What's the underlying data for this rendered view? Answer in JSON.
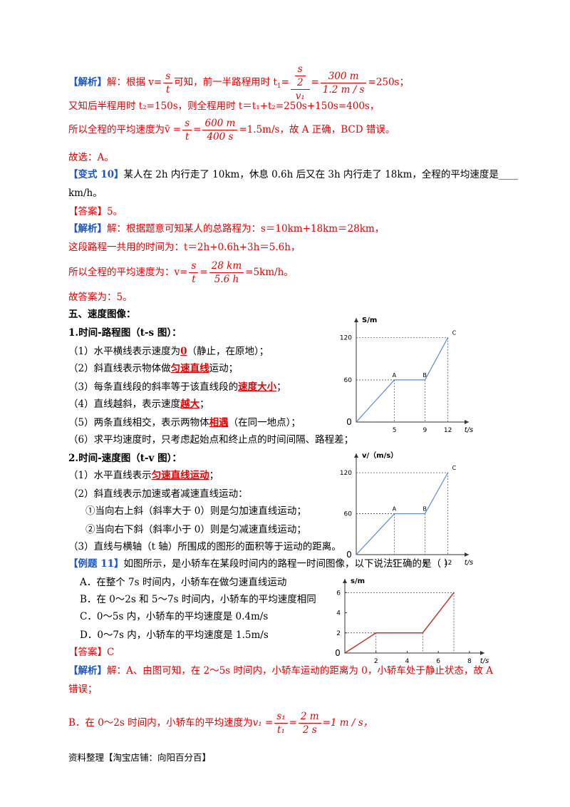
{
  "doc": {
    "l1_a": "【解析】",
    "l1_b": "解：根据 v=",
    "l1_c": "可知，前一半路程用时 t",
    "l1_sub": "1",
    "l1_d": "=",
    "l1_e": "=",
    "l1_f": "=250s；",
    "frac_s": "s",
    "frac_t": "t",
    "frac_half_top": "s",
    "frac_half_mid": "2",
    "frac_half_bot": "v₁",
    "frac_300": "300 m",
    "frac_12": "1.2 m / s",
    "l2": "又知后半程用时 t₂=150s，则全程用时 t＝t₁+t₂=250s+150s=400s，",
    "l3_a": "所以全程的平均速度为v̄ =",
    "l3_eq": "=",
    "frac_600": "600 m",
    "frac_400": "400 s",
    "l3_b": "=1.5m/s，故 A 正确，BCD 错误。",
    "l4": "故选：A。",
    "l5_a": "【变式 10】",
    "l5_b": "某人在 2h 内行走了 10km，休息 0.6h 后又在 3h 内行走了 18km，全程的平均速度是____",
    "l6": "km/h。",
    "l7": "【答案】5。",
    "l8_a": "【解析】",
    "l8_b": "解：根据题意可知某人的总路程为：s＝10km+18km＝28km，",
    "l9": "这段路程一共用的时间为：t＝2h+0.6h+3h＝5.6h，",
    "l10_a": "所以全程的平均速度为：v=",
    "l10_eq": "=",
    "frac_28": "28 km",
    "frac_56": "5.6 h",
    "l10_b": "=5km/h。",
    "l11": "故答案为：5。",
    "h5": "五、速度图像：",
    "h51": "1.时间-路程图（t-s 图）：",
    "p1_a": "（1）水平横线表示速度为",
    "p1_u": "0",
    "p1_b": "（静止，在原地）；",
    "p2_a": "（2）斜直线表示物体做",
    "p2_u": "匀速直线",
    "p2_b": "运动；",
    "p3_a": "（3）每条直线段的斜率等于该直线段的",
    "p3_u": "速度大小",
    "p3_b": "；",
    "p4_a": "（4）直线越斜，表示速度",
    "p4_u": "越大",
    "p4_b": "；",
    "p5_a": "（5）两条直线相交，表示两物体",
    "p5_u": "相遇",
    "p5_b": "（在同一地点）；",
    "p6": "（6）求平均速度时，只考虑起始点和终止点的时间间隔、路程差；",
    "h52": "2.时间-速度图（t-v 图）：",
    "q1_a": "（1）水平直线表示",
    "q1_u": "匀速直线运动",
    "q1_b": "；",
    "q2": "（2）斜直线表示加速或者减速直线运动：",
    "q2a": "①当向右上斜（斜率大于 0）则是匀加速直线运动；",
    "q2b": "②当向右下斜（斜率小于 0）则是匀减速直线运动；",
    "q3": "（3）直线与横轴（t 轴）所围成的图形的面积等于运动的距离。",
    "e11_a": "【例题 11】",
    "e11_b": "如图所示，是小轿车在某段时间内的路程一时间图像，以下说法正确的是（    ）",
    "optA": "A．在整个 7s 时间内，小轿车在做匀速直线运动",
    "optB": "B．在 0～2s 和 5～7s 时间内，小轿车的平均速度相同",
    "optC": "C．0～5s 内，小轿车的平均速度是 0.4m/s",
    "optD": "D．0～7s 内，小轿车的平均速度是 1.5m/s",
    "ans": "【答案】C",
    "an_a": "【解析】",
    "an_b": "解：A、由图可知，在 2～5s 时间内，小轿车运动的距离为 0，小轿车处于静止状态，故 A",
    "an_c": "错误；",
    "lb_a": "B．在 0～2s 时间内，小轿车的平均速度为",
    "lb_v": "v₁ =",
    "frac_s1": "s₁",
    "frac_t1": "t₁",
    "lb_eq": "=",
    "frac_2m": "2 m",
    "frac_2s": "2 s",
    "lb_b": "=1 m / s，",
    "footer": "资料整理【淘宝店铺：向阳百分百】"
  },
  "chart_data": [
    {
      "type": "line",
      "ylabel": "S/m",
      "xlabel": "t/s",
      "x_ticks": [
        "5",
        "9",
        "12"
      ],
      "y_ticks": [
        "60",
        "120"
      ],
      "origin_label": "0",
      "points": [
        {
          "x": 0,
          "y": 0
        },
        {
          "x": 5,
          "y": 60,
          "label": "A"
        },
        {
          "x": 9,
          "y": 60,
          "label": "B"
        },
        {
          "x": 12,
          "y": 120,
          "label": "C"
        }
      ],
      "xlim": [
        0,
        14
      ],
      "ylim": [
        0,
        140
      ]
    },
    {
      "type": "line",
      "ylabel": "v/（m/s）",
      "xlabel": "t/s",
      "x_ticks": [
        "5",
        "9",
        "12"
      ],
      "y_ticks": [
        "60",
        "120"
      ],
      "origin_label": "0",
      "points": [
        {
          "x": 0,
          "y": 0
        },
        {
          "x": 5,
          "y": 60,
          "label": "A"
        },
        {
          "x": 9,
          "y": 60,
          "label": "B"
        },
        {
          "x": 12,
          "y": 120,
          "label": "C"
        }
      ],
      "xlim": [
        0,
        14
      ],
      "ylim": [
        0,
        140
      ]
    },
    {
      "type": "line",
      "ylabel": "s/m",
      "xlabel": "t/s",
      "x_ticks": [
        "2",
        "4",
        "6",
        "8"
      ],
      "y_ticks": [
        "2",
        "4",
        "6"
      ],
      "origin_label": "0",
      "points": [
        {
          "x": 0,
          "y": 0
        },
        {
          "x": 2,
          "y": 2
        },
        {
          "x": 5,
          "y": 2
        },
        {
          "x": 7,
          "y": 6
        }
      ],
      "xlim": [
        0,
        8.6
      ],
      "ylim": [
        0,
        6.8
      ]
    }
  ]
}
